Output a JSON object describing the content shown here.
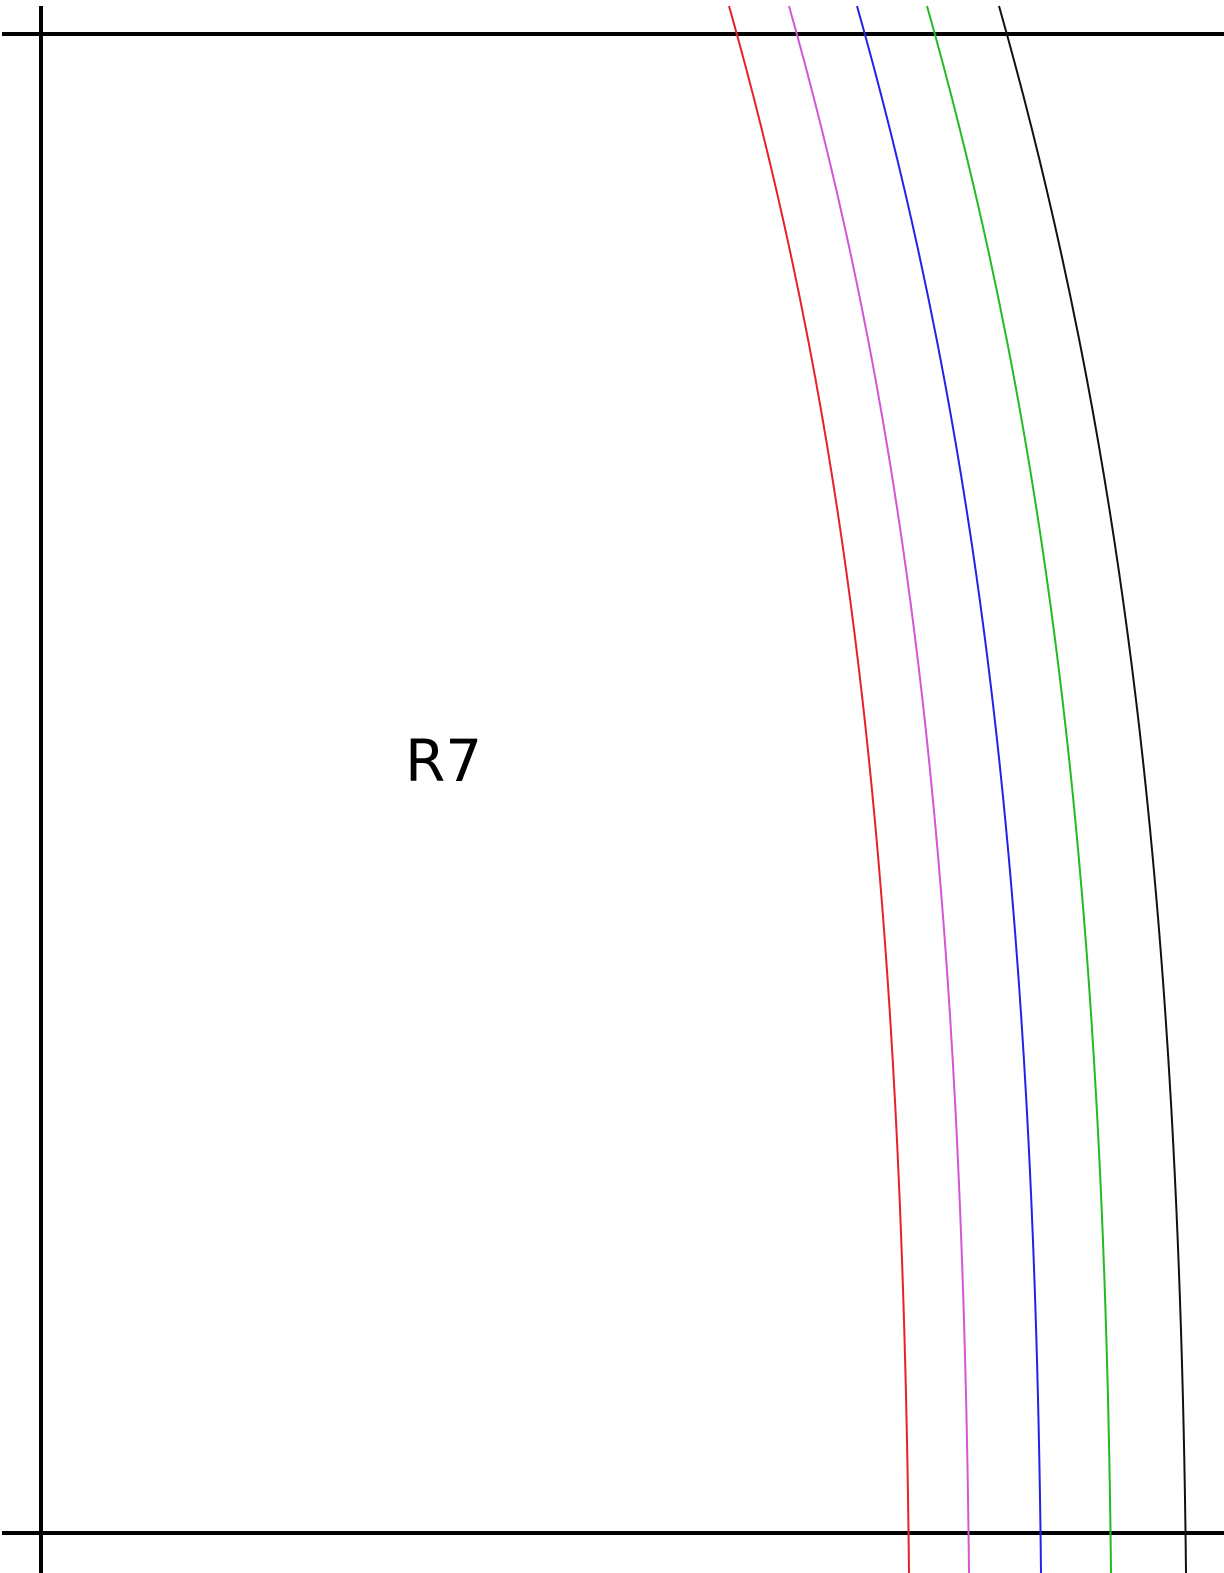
{
  "diagram": {
    "region_label": "R7",
    "colors": {
      "frame": "#000000",
      "curves": [
        "#e8202a",
        "#d455d6",
        "#2222e8",
        "#22bb22",
        "#111111"
      ]
    }
  }
}
